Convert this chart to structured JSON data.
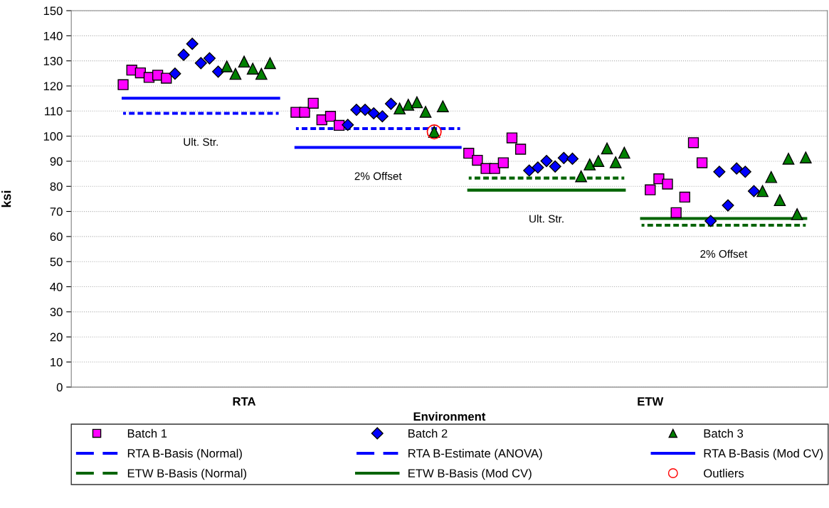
{
  "chart_data": {
    "type": "scatter",
    "xlabel": "Environment",
    "ylabel": "ksi",
    "categories": [
      null,
      null,
      null,
      null,
      null,
      null,
      null,
      null,
      null,
      null,
      null,
      null,
      null,
      null,
      "RTA",
      null,
      null,
      null,
      null,
      null,
      null,
      null,
      null,
      null,
      null,
      null,
      null,
      null,
      null,
      null,
      null,
      null,
      null,
      null,
      null,
      null,
      null,
      null,
      null,
      null,
      null,
      null,
      null,
      null,
      null,
      null,
      null,
      null,
      null,
      null,
      null,
      null,
      null,
      null,
      null,
      null,
      null,
      null,
      null,
      null,
      null,
      "ETW",
      null,
      null,
      null,
      null,
      null,
      null,
      null,
      null,
      null,
      null,
      null,
      null,
      null,
      null,
      null,
      null,
      null,
      null
    ],
    "ylim": [
      0,
      150
    ],
    "yticks": [
      0,
      10,
      20,
      30,
      40,
      50,
      60,
      70,
      80,
      90,
      100,
      110,
      120,
      130,
      140,
      150
    ],
    "grid": "y",
    "legend": "bottom",
    "series": [
      {
        "name": "Batch 1",
        "type": "scatter",
        "marker": "square",
        "color": "#ff00ff",
        "values": [
          120.5,
          126.3,
          125.2,
          123.4,
          124.3,
          123.1,
          null,
          null,
          null,
          null,
          null,
          null,
          null,
          null,
          null,
          null,
          null,
          null,
          null,
          null,
          109.5,
          109.5,
          113.1,
          106.5,
          107.9,
          104.3,
          null,
          null,
          null,
          null,
          null,
          null,
          null,
          null,
          null,
          null,
          null,
          null,
          null,
          null,
          93.2,
          90.4,
          87.1,
          87.1,
          89.4,
          99.3,
          94.8,
          null,
          null,
          null,
          null,
          null,
          null,
          null,
          null,
          null,
          null,
          null,
          null,
          null,
          null,
          78.6,
          83.0,
          80.9,
          69.5,
          75.7,
          97.4,
          89.4,
          null,
          null,
          null,
          null,
          null,
          null,
          null,
          null,
          null,
          null,
          null,
          null
        ]
      },
      {
        "name": "Batch 2",
        "type": "scatter",
        "marker": "diamond",
        "color": "#0000ff",
        "values": [
          null,
          null,
          null,
          null,
          null,
          null,
          124.9,
          132.4,
          136.8,
          129.1,
          131.0,
          125.7,
          null,
          null,
          null,
          null,
          null,
          null,
          null,
          null,
          null,
          null,
          null,
          null,
          null,
          null,
          104.5,
          110.5,
          110.5,
          109.1,
          107.9,
          112.9,
          null,
          null,
          null,
          null,
          null,
          null,
          null,
          null,
          null,
          null,
          null,
          null,
          null,
          null,
          null,
          86.3,
          87.5,
          90.1,
          87.9,
          91.3,
          91.0,
          null,
          null,
          null,
          null,
          null,
          null,
          null,
          null,
          null,
          null,
          null,
          null,
          null,
          null,
          null,
          66.2,
          85.8,
          72.4,
          87.1,
          85.8,
          78.1,
          null,
          null,
          null,
          null,
          null,
          null
        ]
      },
      {
        "name": "Batch 3",
        "type": "scatter",
        "marker": "triangle",
        "color": "#008000",
        "values": [
          null,
          null,
          null,
          null,
          null,
          null,
          null,
          null,
          null,
          null,
          null,
          null,
          127.8,
          124.8,
          129.7,
          126.9,
          124.8,
          129.1,
          null,
          null,
          null,
          null,
          null,
          null,
          null,
          null,
          null,
          null,
          null,
          null,
          null,
          null,
          111.0,
          112.5,
          113.5,
          109.7,
          101.7,
          111.9,
          null,
          null,
          null,
          null,
          null,
          null,
          null,
          null,
          null,
          null,
          null,
          null,
          null,
          null,
          null,
          84.0,
          88.7,
          90.1,
          95.1,
          89.6,
          93.4,
          null,
          null,
          null,
          null,
          null,
          null,
          null,
          null,
          null,
          null,
          null,
          null,
          null,
          null,
          null,
          78.1,
          83.7,
          74.5,
          91.0,
          68.9,
          91.5
        ]
      },
      {
        "name": "RTA B-Basis (Normal)",
        "type": "line",
        "line_style": "dashed",
        "color": "#0000ff",
        "values": [
          null,
          null,
          null,
          null,
          null,
          null,
          null,
          null,
          null,
          null,
          null,
          null,
          null,
          null,
          null,
          null,
          null,
          null,
          null,
          null,
          103.0,
          103.0,
          103.0,
          103.0,
          103.0,
          103.0,
          103.0,
          103.0,
          103.0,
          103.0,
          103.0,
          103.0,
          103.0,
          103.0,
          103.0,
          103.0,
          103.0,
          103.0,
          103.0,
          103.0,
          null,
          null,
          null,
          null,
          null,
          null,
          null,
          null,
          null,
          null,
          null,
          null,
          null,
          null,
          null,
          null,
          null,
          null,
          null,
          null,
          null,
          null,
          null,
          null,
          null,
          null,
          null,
          null,
          null,
          null,
          null,
          null,
          null,
          null,
          null,
          null,
          null,
          null,
          null,
          null
        ]
      },
      {
        "name": "RTA B-Estimate (ANOVA)",
        "type": "line",
        "line_style": "dashed",
        "color": "#0000ff",
        "values": [
          109.1,
          109.1,
          109.1,
          109.1,
          109.1,
          109.1,
          109.1,
          109.1,
          109.1,
          109.1,
          109.1,
          109.1,
          109.1,
          109.1,
          109.1,
          109.1,
          109.1,
          109.1,
          109.1,
          null,
          null,
          null,
          null,
          null,
          null,
          null,
          null,
          null,
          null,
          null,
          null,
          null,
          null,
          null,
          null,
          null,
          null,
          null,
          null,
          null,
          null,
          null,
          null,
          null,
          null,
          null,
          null,
          null,
          null,
          null,
          null,
          null,
          null,
          null,
          null,
          null,
          null,
          null,
          null,
          null,
          null,
          null,
          null,
          null,
          null,
          null,
          null,
          null,
          null,
          null,
          null,
          null,
          null,
          null,
          null,
          null,
          null,
          null,
          null,
          null
        ]
      },
      {
        "name": "RTA B-Basis (Mod CV)",
        "type": "line",
        "line_style": "solid",
        "color": "#0000ff",
        "values": [
          115.1,
          115.1,
          115.1,
          115.1,
          115.1,
          115.1,
          115.1,
          115.1,
          115.1,
          115.1,
          115.1,
          115.1,
          115.1,
          115.1,
          115.1,
          115.1,
          115.1,
          115.1,
          115.1,
          null,
          95.5,
          95.5,
          95.5,
          95.5,
          95.5,
          95.5,
          95.5,
          95.5,
          95.5,
          95.5,
          95.5,
          95.5,
          95.5,
          95.5,
          95.5,
          95.5,
          95.5,
          95.5,
          95.5,
          95.5,
          null,
          null,
          null,
          null,
          null,
          null,
          null,
          null,
          null,
          null,
          null,
          null,
          null,
          null,
          null,
          null,
          null,
          null,
          null,
          null,
          null,
          null,
          null,
          null,
          null,
          null,
          null,
          null,
          null,
          null,
          null,
          null,
          null,
          null,
          null,
          null,
          null,
          null,
          null,
          null
        ]
      },
      {
        "name": "ETW B-Basis (Normal)",
        "type": "line",
        "line_style": "dashed",
        "color": "#006400",
        "values": [
          null,
          null,
          null,
          null,
          null,
          null,
          null,
          null,
          null,
          null,
          null,
          null,
          null,
          null,
          null,
          null,
          null,
          null,
          null,
          null,
          null,
          null,
          null,
          null,
          null,
          null,
          null,
          null,
          null,
          null,
          null,
          null,
          null,
          null,
          null,
          null,
          null,
          null,
          null,
          null,
          83.3,
          83.3,
          83.3,
          83.3,
          83.3,
          83.3,
          83.3,
          83.3,
          83.3,
          83.3,
          83.3,
          83.3,
          83.3,
          83.3,
          83.3,
          83.3,
          83.3,
          83.3,
          83.3,
          null,
          64.5,
          64.5,
          64.5,
          64.5,
          64.5,
          64.5,
          64.5,
          64.5,
          64.5,
          64.5,
          64.5,
          64.5,
          64.5,
          64.5,
          64.5,
          64.5,
          64.5,
          64.5,
          64.5,
          64.5
        ]
      },
      {
        "name": "ETW B-Basis (Mod CV)",
        "type": "line",
        "line_style": "solid",
        "color": "#006400",
        "values": [
          null,
          null,
          null,
          null,
          null,
          null,
          null,
          null,
          null,
          null,
          null,
          null,
          null,
          null,
          null,
          null,
          null,
          null,
          null,
          null,
          null,
          null,
          null,
          null,
          null,
          null,
          null,
          null,
          null,
          null,
          null,
          null,
          null,
          null,
          null,
          null,
          null,
          null,
          null,
          null,
          78.5,
          78.5,
          78.5,
          78.5,
          78.5,
          78.5,
          78.5,
          78.5,
          78.5,
          78.5,
          78.5,
          78.5,
          78.5,
          78.5,
          78.5,
          78.5,
          78.5,
          78.5,
          78.5,
          null,
          67.2,
          67.2,
          67.2,
          67.2,
          67.2,
          67.2,
          67.2,
          67.2,
          67.2,
          67.2,
          67.2,
          67.2,
          67.2,
          67.2,
          67.2,
          67.2,
          67.2,
          67.2,
          67.2,
          67.2
        ]
      },
      {
        "name": "Outliers",
        "type": "scatter",
        "marker": "circle",
        "color": "#ff0000",
        "values": [
          null,
          null,
          null,
          null,
          null,
          null,
          null,
          null,
          null,
          null,
          null,
          null,
          null,
          null,
          null,
          null,
          null,
          null,
          null,
          null,
          null,
          null,
          null,
          null,
          null,
          null,
          null,
          null,
          null,
          null,
          null,
          null,
          null,
          null,
          null,
          null,
          101.7,
          null,
          null,
          null,
          null,
          null,
          null,
          null,
          null,
          null,
          null,
          null,
          null,
          null,
          null,
          null,
          null,
          null,
          null,
          null,
          null,
          null,
          null,
          null,
          null,
          null,
          null,
          null,
          null,
          null,
          null,
          null,
          null,
          null,
          null,
          null,
          null,
          null,
          null,
          null,
          null,
          null,
          null,
          null
        ]
      }
    ],
    "annotations": [
      "Ult. Str.",
      "2% Offset",
      "Ult. Str.",
      "2% Offset"
    ]
  }
}
